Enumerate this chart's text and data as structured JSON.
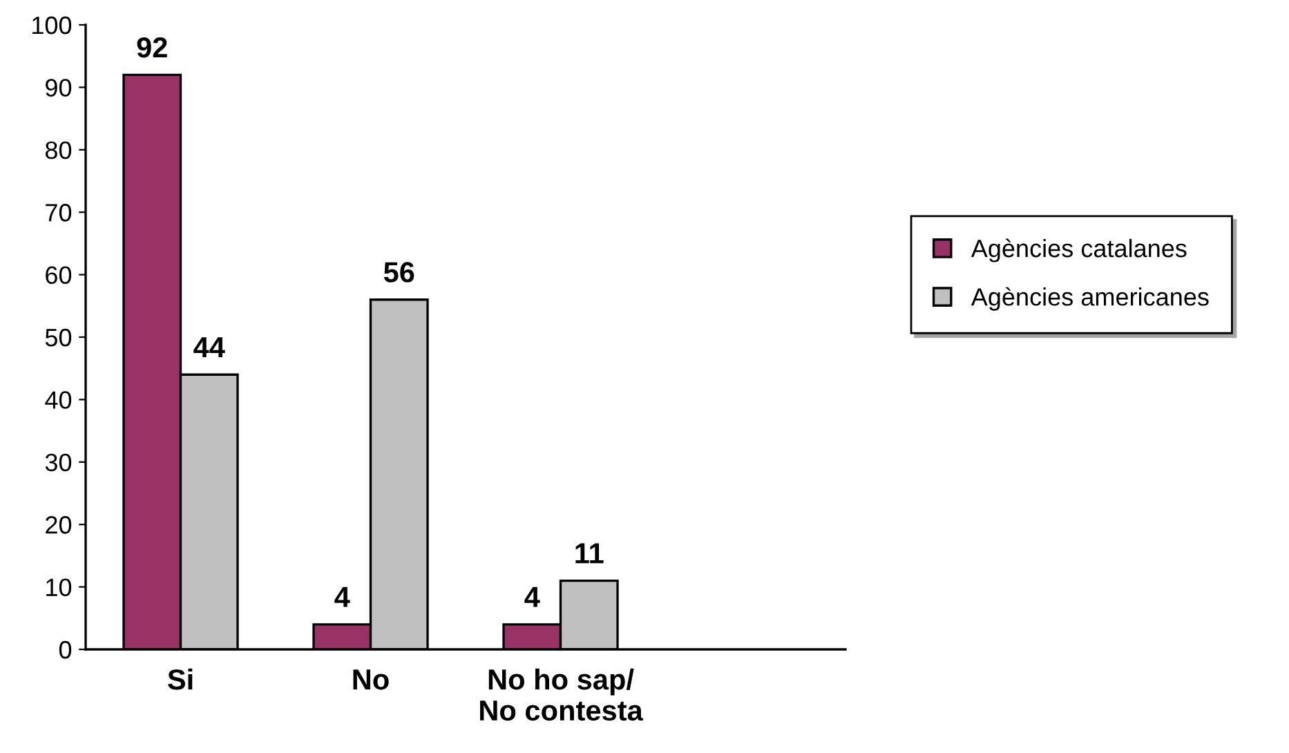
{
  "chart_data": {
    "type": "bar",
    "categories": [
      "Si",
      "No",
      "No ho sap/\nNo contesta",
      null
    ],
    "series": [
      {
        "name": "Agències catalanes",
        "color": "#993366",
        "values": [
          92,
          4,
          4,
          null
        ]
      },
      {
        "name": "Agències americanes",
        "color": "#c0c0c0",
        "values": [
          44,
          56,
          11,
          null
        ]
      }
    ],
    "ylim": [
      0,
      100
    ],
    "yticks": [
      0,
      10,
      20,
      30,
      40,
      50,
      60,
      70,
      80,
      90,
      100
    ],
    "data_labels": true,
    "grid": false,
    "legend": "right"
  }
}
